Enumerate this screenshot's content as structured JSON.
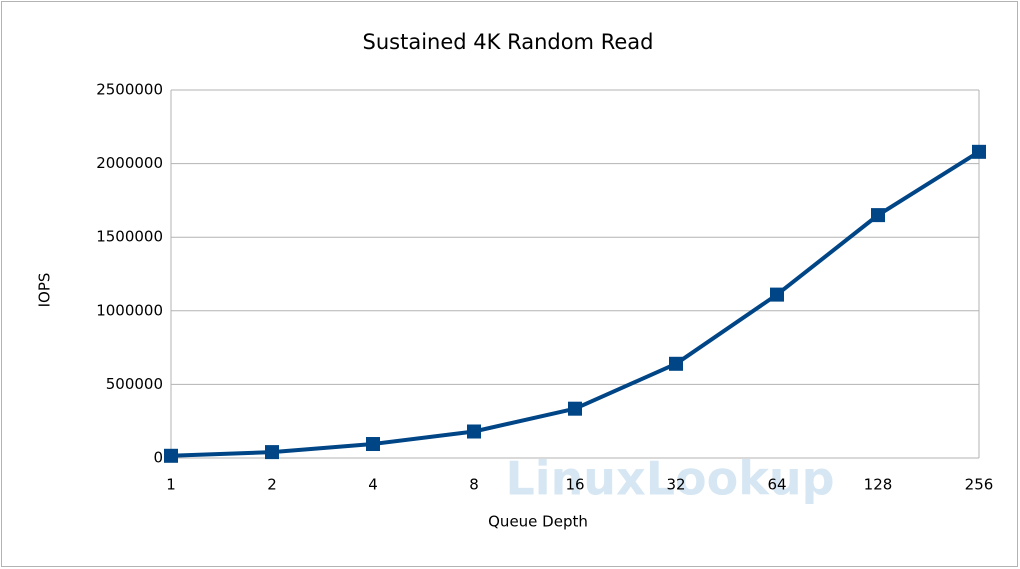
{
  "chart_data": {
    "type": "line",
    "title": "Sustained 4K Random Read",
    "x_label": "Queue Depth",
    "y_label": "IOPS",
    "categories": [
      "1",
      "2",
      "4",
      "8",
      "16",
      "32",
      "64",
      "128",
      "256"
    ],
    "series": [
      {
        "name": "IOPS",
        "color": "#004586",
        "values": [
          15000,
          40000,
          95000,
          180000,
          335000,
          640000,
          1110000,
          1650000,
          2080000
        ]
      }
    ],
    "ylim": [
      0,
      2500000
    ],
    "yticks": [
      0,
      500000,
      1000000,
      1500000,
      2000000,
      2500000
    ],
    "grid": true,
    "legend": false,
    "watermark": "LinuxLookup"
  }
}
